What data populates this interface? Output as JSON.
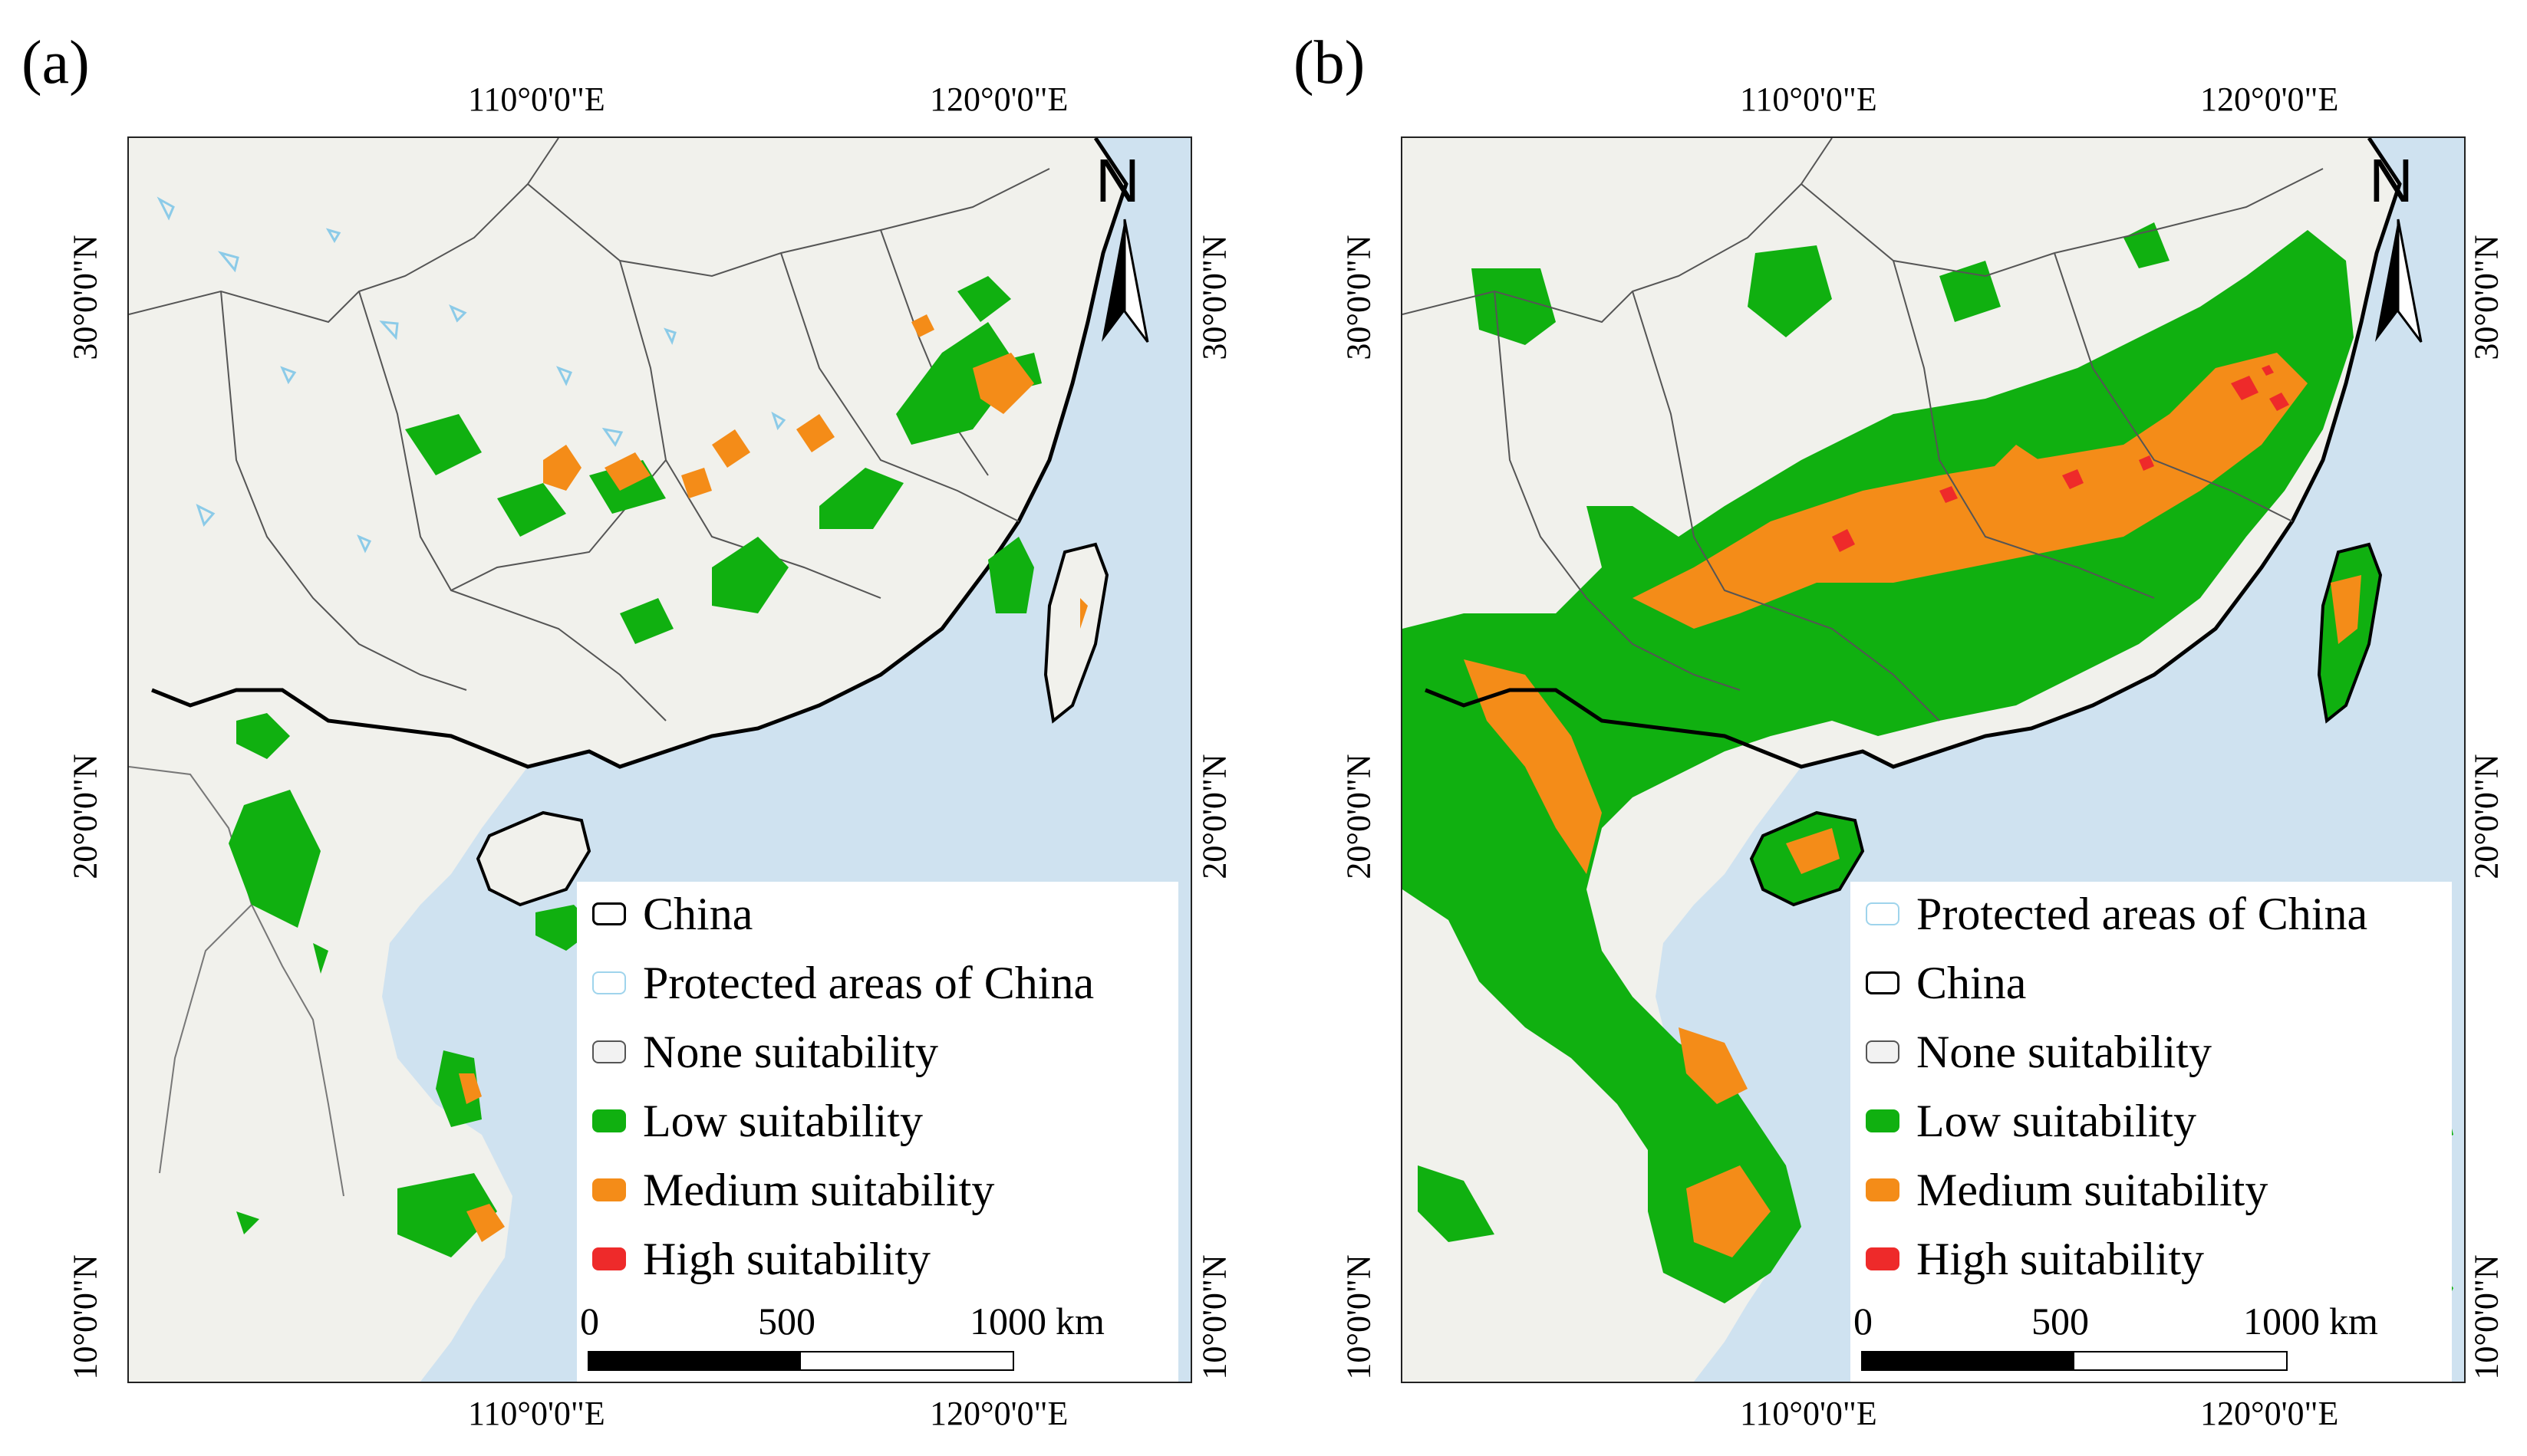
{
  "figure": {
    "colors": {
      "sea": "#cfe2f0",
      "land": "#f2f1ec",
      "none": "#f2f2f2",
      "low": "#10b010",
      "medium": "#f48c18",
      "high": "#ee2a2a",
      "china_border": "#000000",
      "protected": "#9fd4ec"
    },
    "panels": [
      {
        "label": "(a)",
        "top_ticks": [
          "110°0'0\"E",
          "120°0'0\"E"
        ],
        "bottom_ticks": [
          "110°0'0\"E",
          "120°0'0\"E"
        ],
        "left_ticks": [
          "30°0'0\"N",
          "20°0'0\"N",
          "10°0'0\"N"
        ],
        "right_ticks": [
          "30°0'0\"N",
          "20°0'0\"N",
          "10°0'0\"N"
        ],
        "north": "N",
        "legend": [
          {
            "label": "China",
            "kind": "china"
          },
          {
            "label": "Protected areas of China",
            "kind": "protected"
          },
          {
            "label": "None suitability",
            "kind": "none"
          },
          {
            "label": "Low suitability",
            "kind": "low"
          },
          {
            "label": "Medium suitability",
            "kind": "medium"
          },
          {
            "label": "High suitability",
            "kind": "high"
          }
        ],
        "scale": {
          "labels": [
            "0",
            "500",
            "1000"
          ],
          "unit": "km"
        }
      },
      {
        "label": "(b)",
        "top_ticks": [
          "110°0'0\"E",
          "120°0'0\"E"
        ],
        "bottom_ticks": [
          "110°0'0\"E",
          "120°0'0\"E"
        ],
        "left_ticks": [
          "30°0'0\"N",
          "20°0'0\"N",
          "10°0'0\"N"
        ],
        "right_ticks": [
          "30°0'0\"N",
          "20°0'0\"N",
          "10°0'0\"N"
        ],
        "north": "N",
        "legend": [
          {
            "label": "Protected areas of China",
            "kind": "protected"
          },
          {
            "label": "China",
            "kind": "china"
          },
          {
            "label": "None suitability",
            "kind": "none"
          },
          {
            "label": "Low suitability",
            "kind": "low"
          },
          {
            "label": "Medium suitability",
            "kind": "medium"
          },
          {
            "label": "High suitability",
            "kind": "high"
          }
        ],
        "scale": {
          "labels": [
            "0",
            "500",
            "1000"
          ],
          "unit": "km"
        }
      }
    ]
  }
}
